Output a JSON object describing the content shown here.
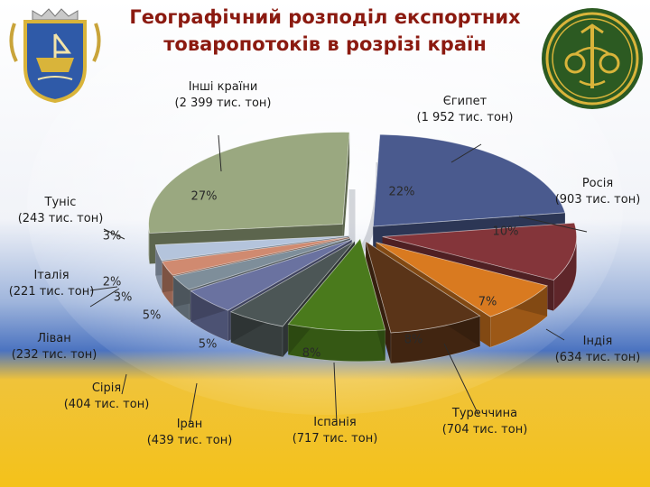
{
  "title_line1": "Географічний розподіл експортних",
  "title_line2": "товаропотоків в розрізі країн",
  "colors": {
    "title": "#8b1a10",
    "flag_blue": "#2f5aa8",
    "flag_yellow": "#f2c21c",
    "emblem_green": "#2c5a22",
    "emblem_gold": "#d9b43a"
  },
  "icons": [
    "city-coat-of-arms-icon",
    "customs-emblem-icon",
    "trident-watermark-icon"
  ],
  "chart_data": {
    "type": "pie",
    "title": "Географічний розподіл експортних товаропотоків в розрізі країн",
    "unit": "тис. тон",
    "legend": "none",
    "slices": [
      {
        "name": "Єгипет",
        "label1": "Єгипет",
        "label2": "(1 952 тис. тон)",
        "value": 1952,
        "pct": "22%",
        "color": "#4a5a8e"
      },
      {
        "name": "Росія",
        "label1": "Росія",
        "label2": "(903 тис. тон)",
        "value": 903,
        "pct": "10%",
        "color": "#84353a"
      },
      {
        "name": "Індія",
        "label1": "Індія",
        "label2": "(634 тис. тон)",
        "value": 634,
        "pct": "7%",
        "color": "#d97a20"
      },
      {
        "name": "Туреччина",
        "label1": "Туреччина",
        "label2": "(704 тис. тон)",
        "value": 704,
        "pct": "8%",
        "color": "#5a3418"
      },
      {
        "name": "Іспанія",
        "label1": "Іспанія",
        "label2": "(717 тис. тон)",
        "value": 717,
        "pct": "8%",
        "color": "#4a7a1c"
      },
      {
        "name": "Іран",
        "label1": "Іран",
        "label2": "(439 тис. тон)",
        "value": 439,
        "pct": "5%",
        "color": "#4c5656"
      },
      {
        "name": "Сірія",
        "label1": "Сірія",
        "label2": "(404 тис. тон)",
        "value": 404,
        "pct": "5%",
        "color": "#6a72a0"
      },
      {
        "name": "Ліван",
        "label1": "Ліван",
        "label2": "(232 тис. тон)",
        "value": 232,
        "pct": "3%",
        "color": "#7e8e9a"
      },
      {
        "name": "Італія",
        "label1": "Італія",
        "label2": "(221 тис. тон)",
        "value": 221,
        "pct": "2%",
        "color": "#d08a70"
      },
      {
        "name": "Туніс",
        "label1": "Туніс",
        "label2": "(243 тис. тон)",
        "value": 243,
        "pct": "3%",
        "color": "#b4c4dc"
      },
      {
        "name": "Інші країни",
        "label1": "Інші країни",
        "label2": "(2 399 тис. тон)",
        "value": 2399,
        "pct": "27%",
        "color": "#9aa880"
      }
    ]
  }
}
